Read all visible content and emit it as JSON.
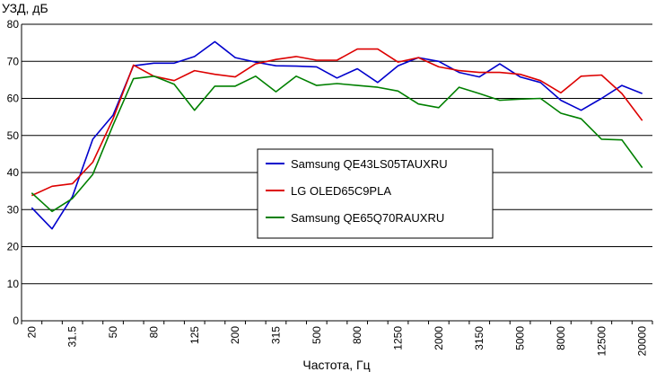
{
  "chart_data": {
    "type": "line",
    "title": "",
    "ylabel": "УЗД, дБ",
    "xlabel": "Частота, Гц",
    "ylim": [
      0,
      80
    ],
    "yticks": [
      0,
      10,
      20,
      30,
      40,
      50,
      60,
      70,
      80
    ],
    "grid": true,
    "legend_position": "center",
    "x": [
      "20",
      "25",
      "31.5",
      "40",
      "50",
      "63",
      "80",
      "100",
      "125",
      "160",
      "200",
      "250",
      "315",
      "400",
      "500",
      "630",
      "800",
      "1000",
      "1250",
      "1600",
      "2000",
      "2500",
      "3150",
      "4000",
      "5000",
      "6300",
      "8000",
      "10000",
      "12500",
      "16000",
      "20000"
    ],
    "x_tick_labels": [
      "20",
      "31.5",
      "50",
      "80",
      "125",
      "200",
      "315",
      "500",
      "800",
      "1250",
      "2000",
      "3150",
      "5000",
      "8000",
      "12500",
      "20000"
    ],
    "series": [
      {
        "name": "Samsung QE43LS05TAUXRU",
        "color": "#0000cc",
        "values": [
          30.5,
          24.8,
          33.5,
          49.0,
          55.5,
          68.8,
          69.5,
          69.5,
          71.3,
          75.3,
          71.0,
          69.8,
          68.8,
          68.7,
          68.5,
          65.5,
          68.0,
          64.3,
          68.8,
          71.0,
          70.0,
          67.0,
          65.8,
          69.3,
          65.8,
          64.3,
          59.5,
          56.8,
          60.0,
          63.5,
          61.3
        ]
      },
      {
        "name": "LG OLED65C9PLA",
        "color": "#dd0000",
        "values": [
          33.8,
          36.3,
          37.0,
          42.8,
          54.5,
          69.0,
          66.0,
          64.8,
          67.5,
          66.5,
          65.8,
          69.3,
          70.5,
          71.3,
          70.3,
          70.3,
          73.3,
          73.3,
          69.8,
          71.0,
          68.5,
          67.5,
          67.0,
          67.0,
          66.5,
          64.8,
          61.5,
          66.0,
          66.3,
          61.3,
          54.0
        ]
      },
      {
        "name": "Samsung QE65Q70RAUXRU",
        "color": "#008000",
        "values": [
          34.5,
          29.5,
          33.0,
          39.5,
          52.8,
          65.3,
          66.0,
          63.8,
          56.8,
          63.3,
          63.3,
          66.0,
          61.8,
          66.0,
          63.5,
          64.0,
          63.5,
          63.0,
          62.0,
          58.5,
          57.5,
          63.0,
          61.3,
          59.5,
          59.8,
          60.0,
          56.0,
          54.5,
          49.0,
          48.8,
          41.3
        ]
      }
    ]
  }
}
